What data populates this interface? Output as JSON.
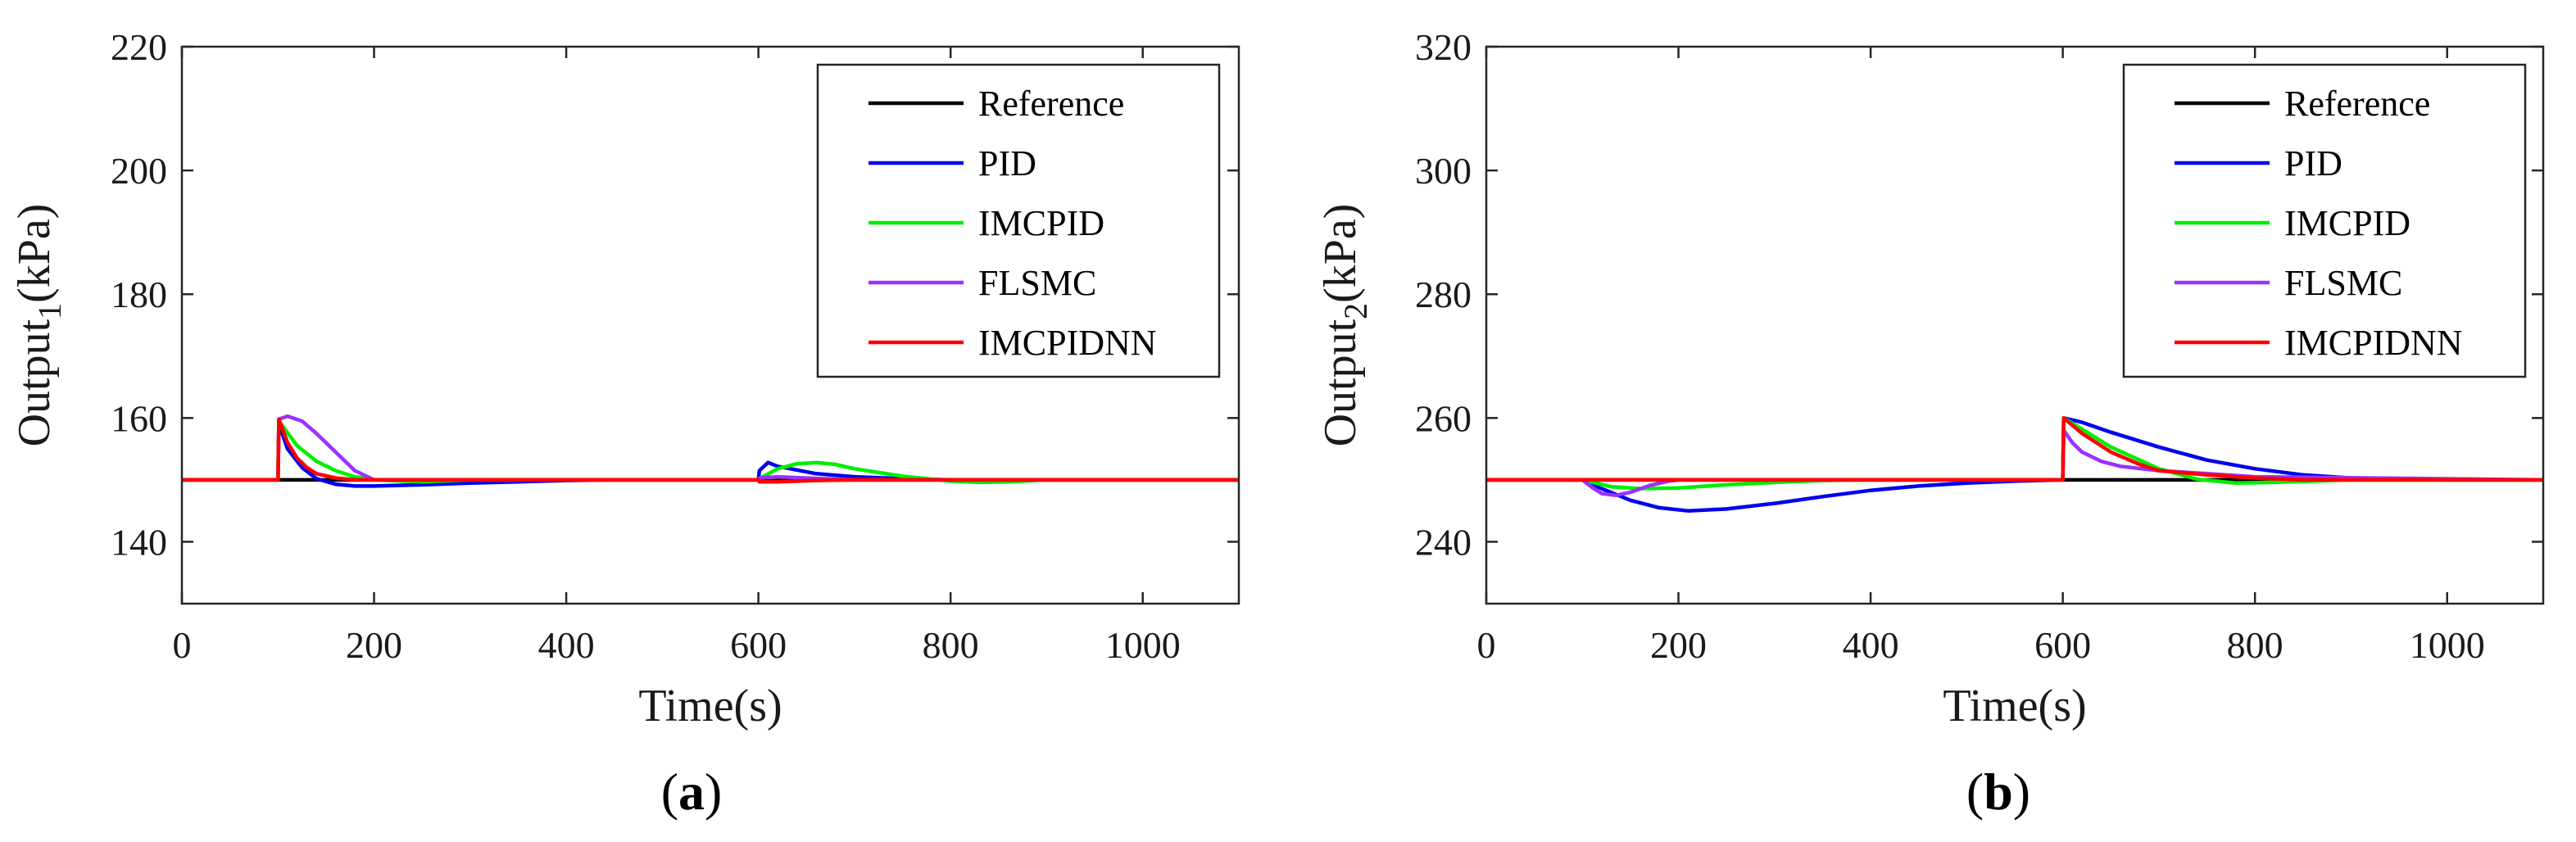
{
  "chart_data": [
    {
      "type": "line",
      "panel_label": "a",
      "xlabel": "Time(s)",
      "ylabel": "Output",
      "ylabel_subscript": "1",
      "ylabel_unit": "(kPa)",
      "xlim": [
        0,
        1100
      ],
      "ylim": [
        130,
        220
      ],
      "xticks": [
        0,
        200,
        400,
        600,
        800,
        1000
      ],
      "yticks": [
        140,
        160,
        180,
        200,
        220
      ],
      "legend_position": "top-right",
      "series": [
        {
          "name": "Reference",
          "color": "#000000",
          "x": [
            0,
            100,
            100,
            600,
            600,
            1100
          ],
          "y": [
            150,
            150,
            150,
            150,
            150,
            150
          ]
        },
        {
          "name": "PID",
          "color": "#0000ee",
          "x": [
            0,
            100,
            101,
            110,
            125,
            140,
            160,
            180,
            200,
            250,
            300,
            350,
            400,
            450,
            500,
            600,
            601,
            610,
            620,
            640,
            660,
            700,
            750,
            800,
            1100
          ],
          "y": [
            150,
            150,
            159,
            155,
            152,
            150.2,
            149.3,
            149,
            149,
            149.2,
            149.5,
            149.7,
            149.9,
            150,
            150,
            150,
            151.5,
            152.8,
            152.2,
            151.6,
            151,
            150.5,
            150.2,
            150,
            150
          ]
        },
        {
          "name": "IMCPID",
          "color": "#00ee00",
          "x": [
            0,
            100,
            101,
            120,
            140,
            160,
            180,
            200,
            250,
            300,
            600,
            601,
            620,
            640,
            660,
            680,
            700,
            750,
            800,
            830,
            860,
            900,
            1000,
            1100
          ],
          "y": [
            150,
            150,
            159.5,
            155.5,
            153,
            151.5,
            150.5,
            150,
            149.7,
            150,
            150,
            150.2,
            151.8,
            152.6,
            152.8,
            152.5,
            151.8,
            150.6,
            149.8,
            149.6,
            149.7,
            150,
            150,
            150
          ]
        },
        {
          "name": "FLSMC",
          "color": "#9b30ff",
          "x": [
            0,
            100,
            101,
            110,
            125,
            140,
            160,
            180,
            200,
            250,
            600,
            601,
            620,
            650,
            700,
            1100
          ],
          "y": [
            150,
            150,
            159.8,
            160.3,
            159.5,
            157.5,
            154.5,
            151.5,
            150,
            150,
            150,
            150.3,
            150.5,
            150.3,
            150,
            150
          ]
        },
        {
          "name": "IMCPIDNN",
          "color": "#ff0000",
          "x": [
            0,
            100,
            101,
            110,
            120,
            130,
            140,
            160,
            180,
            200,
            250,
            600,
            601,
            620,
            640,
            660,
            700,
            1100
          ],
          "y": [
            150,
            150,
            159.8,
            156,
            153.5,
            152,
            151,
            150.3,
            150,
            150,
            150,
            150,
            149.7,
            149.7,
            149.8,
            149.9,
            150,
            150
          ]
        }
      ]
    },
    {
      "type": "line",
      "panel_label": "b",
      "xlabel": "Time(s)",
      "ylabel": "Output",
      "ylabel_subscript": "2",
      "ylabel_unit": "(kPa)",
      "xlim": [
        0,
        1100
      ],
      "ylim": [
        230,
        320
      ],
      "xticks": [
        0,
        200,
        400,
        600,
        800,
        1000
      ],
      "yticks": [
        240,
        260,
        280,
        300,
        320
      ],
      "legend_position": "top-right",
      "series": [
        {
          "name": "Reference",
          "color": "#000000",
          "x": [
            0,
            600,
            600,
            1100
          ],
          "y": [
            250,
            250,
            250,
            250
          ]
        },
        {
          "name": "PID",
          "color": "#0000ee",
          "x": [
            0,
            100,
            120,
            150,
            180,
            210,
            250,
            300,
            350,
            400,
            450,
            500,
            550,
            600,
            601,
            620,
            650,
            700,
            750,
            800,
            850,
            900,
            950,
            1000,
            1100
          ],
          "y": [
            250,
            250,
            248.6,
            246.7,
            245.5,
            245,
            245.3,
            246.2,
            247.3,
            248.3,
            249,
            249.5,
            249.8,
            250,
            260,
            259.3,
            257.7,
            255.3,
            253.2,
            251.8,
            250.8,
            250.3,
            250.1,
            250,
            250
          ]
        },
        {
          "name": "IMCPID",
          "color": "#00ee00",
          "x": [
            0,
            100,
            130,
            160,
            200,
            250,
            300,
            350,
            400,
            600,
            601,
            620,
            650,
            700,
            740,
            780,
            820,
            860,
            900,
            1000,
            1100
          ],
          "y": [
            250,
            250,
            248.9,
            248.6,
            248.7,
            249.2,
            249.6,
            249.9,
            250,
            250,
            260,
            258.2,
            255.3,
            251.8,
            250.1,
            249.5,
            249.6,
            249.8,
            250,
            250,
            250
          ]
        },
        {
          "name": "FLSMC",
          "color": "#9b30ff",
          "x": [
            0,
            100,
            110,
            120,
            135,
            150,
            170,
            190,
            200,
            250,
            600,
            601,
            610,
            620,
            640,
            660,
            700,
            750,
            800,
            1100
          ],
          "y": [
            250,
            250,
            248.8,
            247.8,
            247.5,
            248,
            249.1,
            249.8,
            250,
            250,
            250,
            258,
            256,
            254.5,
            253,
            252.2,
            251.5,
            251,
            250.5,
            250
          ]
        },
        {
          "name": "IMCPIDNN",
          "color": "#ff0000",
          "x": [
            0,
            600,
            601,
            620,
            650,
            680,
            700,
            750,
            800,
            850,
            1100
          ],
          "y": [
            250,
            250,
            260,
            257.5,
            254.5,
            252.5,
            251.5,
            250.8,
            250.3,
            250,
            250
          ]
        }
      ]
    }
  ]
}
